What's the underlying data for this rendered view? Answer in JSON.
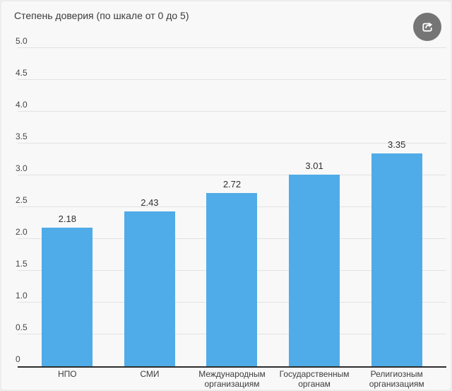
{
  "header": {
    "title": "Степень доверия (по шкале от 0 до 5)"
  },
  "share_button": {
    "icon": "share-export-icon"
  },
  "colors": {
    "background": "#f8f8f8",
    "bar": "#50ace8",
    "gridline": "#e2e2e2",
    "baseline": "#2d2d2d",
    "title_text": "#3a3a3a",
    "tick_text": "#454545",
    "value_text": "#2f2f2f",
    "x_label_text": "#3d3d3d",
    "share_button_bg": "#757575",
    "share_icon": "#ffffff"
  },
  "chart_data": {
    "type": "bar",
    "title": "Степень доверия (по шкале от 0 до 5)",
    "categories": [
      "НПО",
      "СМИ",
      "Международным организациям",
      "Государственным органам",
      "Религиозным организациям"
    ],
    "category_label_lines": [
      [
        "НПО"
      ],
      [
        "СМИ"
      ],
      [
        "Международным",
        "организациям"
      ],
      [
        "Государственным",
        "органам"
      ],
      [
        "Религиозным",
        "организациям"
      ]
    ],
    "values": [
      2.18,
      2.43,
      2.72,
      3.01,
      3.35
    ],
    "value_labels": [
      "2.18",
      "2.43",
      "2.72",
      "3.01",
      "3.35"
    ],
    "xlabel": "",
    "ylabel": "",
    "ylim": [
      0,
      5
    ],
    "y_ticks": [
      {
        "value": 5.0,
        "label": "5.0"
      },
      {
        "value": 4.5,
        "label": "4.5"
      },
      {
        "value": 4.0,
        "label": "4.0"
      },
      {
        "value": 3.5,
        "label": "3.5"
      },
      {
        "value": 3.0,
        "label": "3.0"
      },
      {
        "value": 2.5,
        "label": "2.5"
      },
      {
        "value": 2.0,
        "label": "2.0"
      },
      {
        "value": 1.5,
        "label": "1.5"
      },
      {
        "value": 1.0,
        "label": "1.0"
      },
      {
        "value": 0.5,
        "label": "0.5"
      },
      {
        "value": 0,
        "label": "0"
      }
    ],
    "grid": true,
    "legend": false
  }
}
